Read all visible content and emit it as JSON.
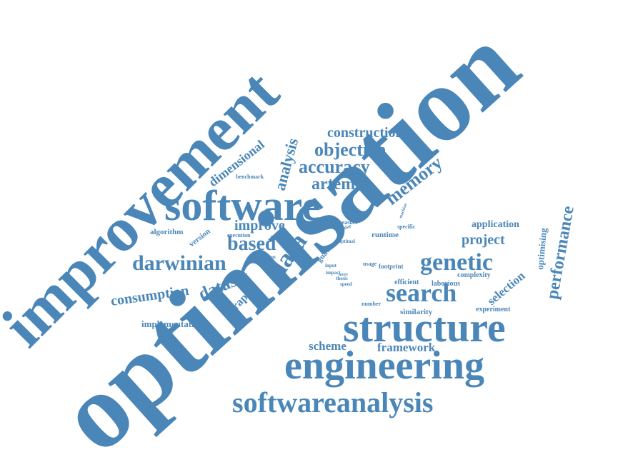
{
  "word_color": "#4a86b8",
  "background": "#ffffff",
  "words": {
    "optimisation": "optimisation",
    "improvement": "improvement",
    "software": "software",
    "structure": "structure",
    "engineering": "engineering",
    "softwareanalysis": "softwareanalysis",
    "search": "search",
    "genetic": "genetic",
    "data": "data",
    "darwinian": "darwinian",
    "performance": "performance",
    "objective": "objective",
    "accuracy": "accuracy",
    "construction": "construction",
    "artemis": "artemis",
    "memory": "memory",
    "analysis": "analysis",
    "dimensional": "dimensional",
    "based": "based",
    "improve": "improve",
    "dataset": "dataset",
    "consumption": "consumption",
    "graph": "graph",
    "project": "project",
    "selection": "selection",
    "application": "application",
    "optimising": "optimising",
    "framework": "framework",
    "scheme": "scheme",
    "implementation": "implementation",
    "similarity": "similarity",
    "experiment": "experiment",
    "complexity": "complexity",
    "efficient": "efficient",
    "laborious": "laborious",
    "algorithm": "algorithm",
    "version": "version",
    "benchmark": "benchmark",
    "execution": "execution",
    "runtime": "runtime",
    "measure": "measure",
    "popular": "popular",
    "optimal": "optimal",
    "footprint": "footprint",
    "guava": "guava",
    "solution": "solution",
    "input": "input",
    "impact": "impact",
    "thesis": "thesis",
    "speed": "speed",
    "number": "number",
    "usage": "usage",
    "specific": "specific",
    "machine": "machine",
    "more": "more"
  }
}
